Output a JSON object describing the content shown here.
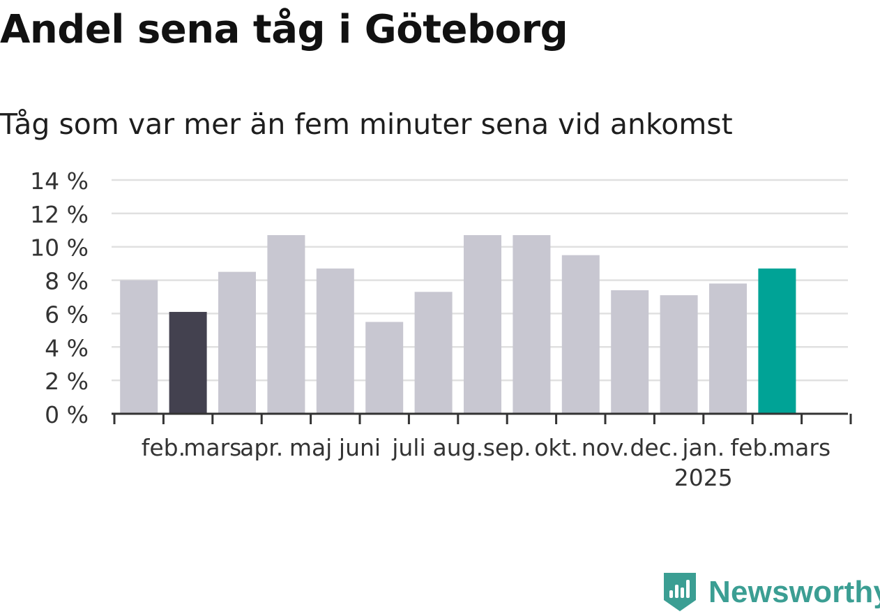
{
  "title": "Andel sena tåg i Göteborg",
  "subtitle": "Tåg som var mer än fem minuter sena vid ankomst",
  "brand": {
    "name": "Newsworthy",
    "logo_icon": "newsworthy-bar-chart-icon",
    "color": "#3b9e93"
  },
  "chart_data": {
    "type": "bar",
    "categories": [
      "feb.",
      "mars",
      "apr.",
      "maj",
      "juni",
      "juli",
      "aug.",
      "sep.",
      "okt.",
      "nov.",
      "dec.",
      "jan.",
      "feb.",
      "mars"
    ],
    "year_labels": [
      "",
      "",
      "",
      "",
      "",
      "",
      "",
      "",
      "",
      "",
      "",
      "2025",
      "",
      ""
    ],
    "values": [
      8.0,
      6.1,
      8.5,
      10.7,
      8.7,
      5.5,
      7.3,
      10.7,
      10.7,
      9.5,
      7.4,
      7.1,
      7.8,
      8.7
    ],
    "bar_colors": [
      "#c8c7d1",
      "#43414f",
      "#c8c7d1",
      "#c8c7d1",
      "#c8c7d1",
      "#c8c7d1",
      "#c8c7d1",
      "#c8c7d1",
      "#c8c7d1",
      "#c8c7d1",
      "#c8c7d1",
      "#c8c7d1",
      "#c8c7d1",
      "#00a396"
    ],
    "yticks": [
      0,
      2,
      4,
      6,
      8,
      10,
      12,
      14
    ],
    "ytick_suffix": " %",
    "ylim": [
      0,
      14
    ],
    "grid": true
  }
}
